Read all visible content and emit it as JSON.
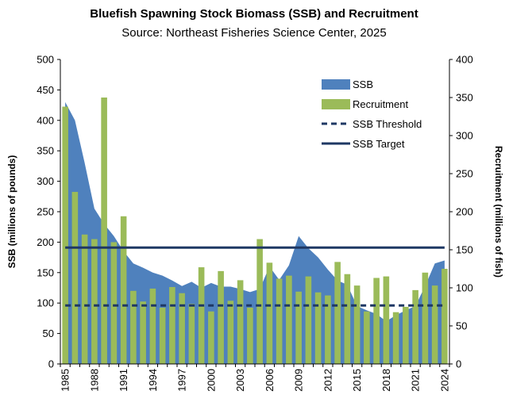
{
  "chart_data": {
    "type": "bar",
    "title": "Bluefish Spawning Stock Biomass (SSB) and Recruitment",
    "subtitle": "Source: Northeast Fisheries Science Center, 2025",
    "ylabel_left": "SSB (millions of pounds)",
    "ylabel_right": "Recruitment (millions of fish)",
    "ylim_left": [
      0,
      500
    ],
    "yticks_left": [
      0,
      50,
      100,
      150,
      200,
      250,
      300,
      350,
      400,
      450,
      500
    ],
    "ylim_right": [
      0,
      400
    ],
    "yticks_right": [
      0,
      50,
      100,
      150,
      200,
      250,
      300,
      350,
      400
    ],
    "x": [
      1985,
      1986,
      1987,
      1988,
      1989,
      1990,
      1991,
      1992,
      1993,
      1994,
      1995,
      1996,
      1997,
      1998,
      1999,
      2000,
      2001,
      2002,
      2003,
      2004,
      2005,
      2006,
      2007,
      2008,
      2009,
      2010,
      2011,
      2012,
      2013,
      2014,
      2015,
      2016,
      2017,
      2018,
      2019,
      2020,
      2021,
      2022,
      2023,
      2024
    ],
    "xtick_labels": [
      "1985",
      "1988",
      "1991",
      "1994",
      "1997",
      "2000",
      "2003",
      "2006",
      "2009",
      "2012",
      "2015",
      "2018",
      "2021",
      "2024"
    ],
    "grid": false,
    "legend_position": "top-right",
    "series": [
      {
        "name": "SSB",
        "type": "area",
        "axis": "left",
        "color": "#4f81bd",
        "values": [
          430,
          400,
          330,
          255,
          230,
          210,
          185,
          165,
          158,
          150,
          145,
          137,
          128,
          135,
          125,
          133,
          127,
          127,
          123,
          118,
          123,
          160,
          138,
          162,
          210,
          190,
          175,
          155,
          137,
          130,
          95,
          88,
          82,
          70,
          80,
          88,
          95,
          128,
          165,
          170
        ]
      },
      {
        "name": "Recruitment",
        "type": "bar",
        "axis": "right",
        "color": "#9bbb59",
        "values": [
          338,
          226,
          170,
          164,
          350,
          160,
          194,
          96,
          82,
          99,
          74,
          101,
          93,
          79,
          127,
          69,
          122,
          83,
          110,
          74,
          164,
          133,
          112,
          116,
          95,
          115,
          94,
          90,
          134,
          118,
          103,
          69,
          113,
          115,
          68,
          75,
          97,
          120,
          103,
          125
        ]
      },
      {
        "name": "SSB Threshold",
        "type": "hline",
        "axis": "left",
        "style": "dashed",
        "color": "#1f3864",
        "value": 96
      },
      {
        "name": "SSB Target",
        "type": "hline",
        "axis": "left",
        "style": "solid",
        "color": "#1f3864",
        "value": 191
      }
    ]
  }
}
